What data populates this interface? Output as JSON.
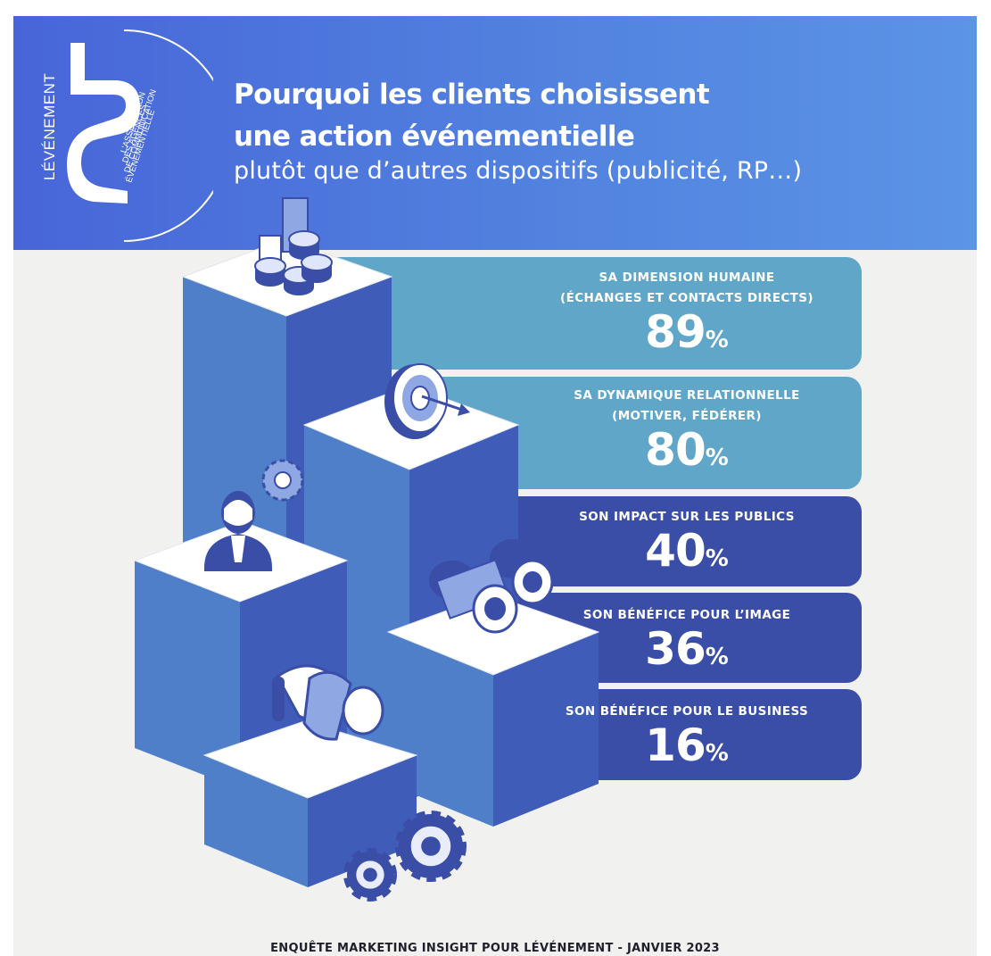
{
  "logo": {
    "brand_text": "LÉVÉNEMENT",
    "tagline": [
      "L'ASSOCIATION",
      "DES AGENCES",
      "DE COMMUNICATION",
      "ÉVÉNEMENTIELLE"
    ]
  },
  "header": {
    "title_line_1": "Pourquoi les clients choisissent",
    "title_line_2": "une action événementielle",
    "subtitle": "plutôt que d’autres dispositifs (publicité, RP…)"
  },
  "colors": {
    "header_blue": "#4c72dc",
    "light_bar": "#5fa6c9",
    "dark_bar": "#3a4ea8",
    "block_front": "#3f5db8",
    "block_side": "#4f7fc9",
    "block_top": "#ffffff"
  },
  "chart_data": {
    "type": "bar",
    "categories": [
      "SA DIMENSION HUMAINE (ÉCHANGES ET CONTACTS DIRECTS)",
      "SA DYNAMIQUE RELATIONNELLE (MOTIVER, FÉDÉRER)",
      "SON IMPACT SUR LES PUBLICS",
      "SON BÉNÉFICE POUR L’IMAGE",
      "SON BÉNÉFICE POUR LE BUSINESS"
    ],
    "values": [
      89,
      80,
      40,
      36,
      16
    ],
    "unit": "%",
    "title": "Pourquoi les clients choisissent une action événementielle",
    "items": [
      {
        "label_lines": [
          "SA DIMENSION HUMAINE",
          "(ÉCHANGES ET CONTACTS DIRECTS)"
        ],
        "value": "89",
        "unit": "%",
        "icon": "coins-chart-icon",
        "tone": "light"
      },
      {
        "label_lines": [
          "SA DYNAMIQUE RELATIONNELLE",
          "(MOTIVER, FÉDÉRER)"
        ],
        "value": "80",
        "unit": "%",
        "icon": "target-icon",
        "tone": "light"
      },
      {
        "label_lines": [
          "SON IMPACT SUR LES PUBLICS"
        ],
        "value": "40",
        "unit": "%",
        "icon": "binoculars-icon",
        "tone": "dark"
      },
      {
        "label_lines": [
          "SON BÉNÉFICE POUR L’IMAGE"
        ],
        "value": "36",
        "unit": "%",
        "icon": "businessman-icon",
        "tone": "dark"
      },
      {
        "label_lines": [
          "SON BÉNÉFICE POUR LE BUSINESS"
        ],
        "value": "16",
        "unit": "%",
        "icon": "handshake-icon",
        "tone": "dark"
      }
    ]
  },
  "footer": {
    "source": "ENQUÊTE MARKETING INSIGHT POUR LÉVÉNEMENT - JANVIER 2023"
  }
}
